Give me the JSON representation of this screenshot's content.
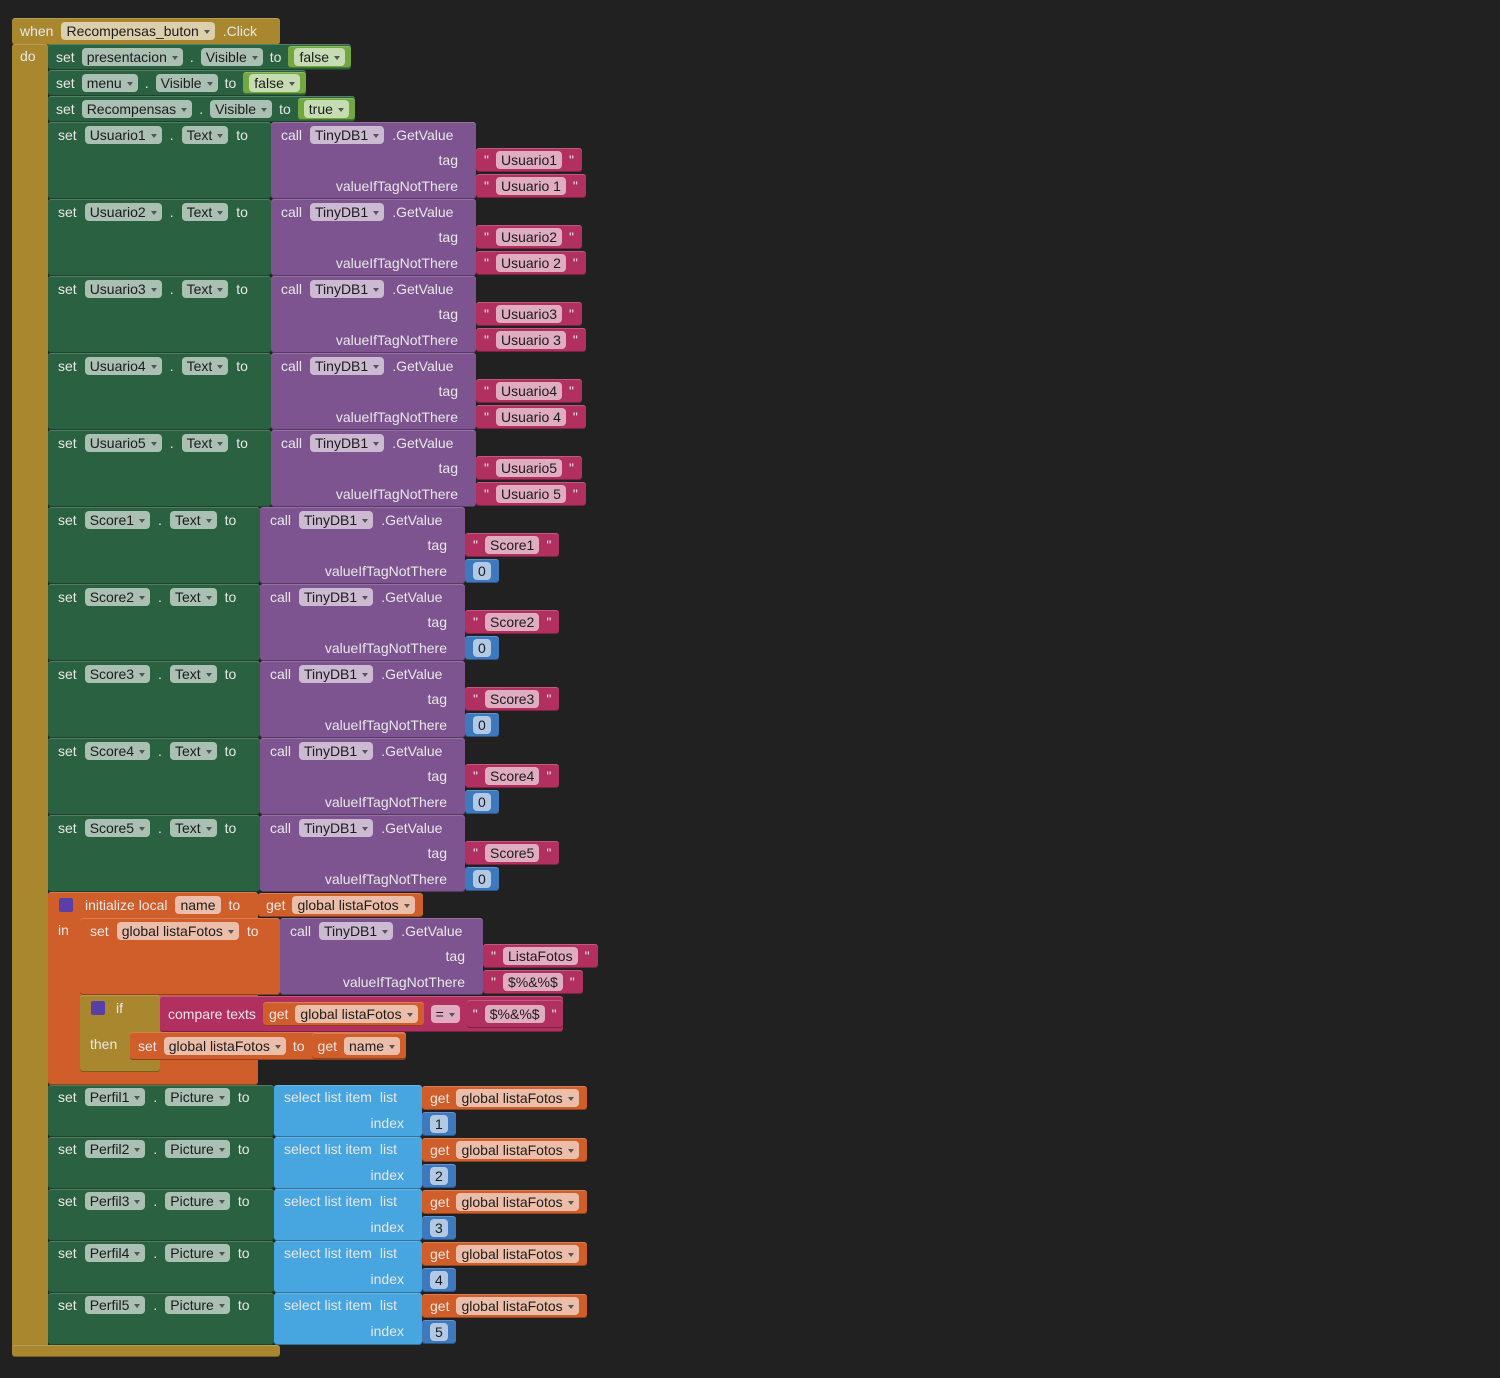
{
  "labels": {
    "when": "when",
    "do": "do",
    "set": "set",
    "dot": ".",
    "to": "to",
    "call": "call",
    "tag": "tag",
    "not_there": "valueIfTagNotThere",
    "quote": "\"",
    "initialize_local": "initialize local",
    "in": "in",
    "get": "get",
    "if": "if",
    "then": "then",
    "compare_texts": "compare texts",
    "select_list_item": "select list item",
    "list": "list",
    "index": "index"
  },
  "event": {
    "component": "Recompensas_buton",
    "event": ".Click"
  },
  "visibility": [
    {
      "component": "presentacion",
      "property": "Visible",
      "value": "false"
    },
    {
      "component": "menu",
      "property": "Visible",
      "value": "false"
    },
    {
      "component": "Recompensas",
      "property": "Visible",
      "value": "true"
    }
  ],
  "text_setters": [
    {
      "component": "Usuario1",
      "property": "Text",
      "db": "TinyDB1",
      "method": ".GetValue",
      "tag": "Usuario1",
      "default": "Usuario 1"
    },
    {
      "component": "Usuario2",
      "property": "Text",
      "db": "TinyDB1",
      "method": ".GetValue",
      "tag": "Usuario2",
      "default": "Usuario 2"
    },
    {
      "component": "Usuario3",
      "property": "Text",
      "db": "TinyDB1",
      "method": ".GetValue",
      "tag": "Usuario3",
      "default": "Usuario 3"
    },
    {
      "component": "Usuario4",
      "property": "Text",
      "db": "TinyDB1",
      "method": ".GetValue",
      "tag": "Usuario4",
      "default": "Usuario 4"
    },
    {
      "component": "Usuario5",
      "property": "Text",
      "db": "TinyDB1",
      "method": ".GetValue",
      "tag": "Usuario5",
      "default": "Usuario 5"
    },
    {
      "component": "Score1",
      "property": "Text",
      "db": "TinyDB1",
      "method": ".GetValue",
      "tag": "Score1",
      "default": 0
    },
    {
      "component": "Score2",
      "property": "Text",
      "db": "TinyDB1",
      "method": ".GetValue",
      "tag": "Score2",
      "default": 0
    },
    {
      "component": "Score3",
      "property": "Text",
      "db": "TinyDB1",
      "method": ".GetValue",
      "tag": "Score3",
      "default": 0
    },
    {
      "component": "Score4",
      "property": "Text",
      "db": "TinyDB1",
      "method": ".GetValue",
      "tag": "Score4",
      "default": 0
    },
    {
      "component": "Score5",
      "property": "Text",
      "db": "TinyDB1",
      "method": ".GetValue",
      "tag": "Score5",
      "default": 0
    }
  ],
  "local": {
    "name": "name",
    "init_var": "global listaFotos",
    "set_var": "global listaFotos",
    "db": "TinyDB1",
    "method": ".GetValue",
    "tag": "ListaFotos",
    "default": "$%&%$",
    "compare_var": "global listaFotos",
    "operator": "=",
    "compare_value": "$%&%$",
    "then_var": "global listaFotos",
    "then_value": "name"
  },
  "picture_setters": [
    {
      "component": "Perfil1",
      "property": "Picture",
      "list": "global listaFotos",
      "index": 1
    },
    {
      "component": "Perfil2",
      "property": "Picture",
      "list": "global listaFotos",
      "index": 2
    },
    {
      "component": "Perfil3",
      "property": "Picture",
      "list": "global listaFotos",
      "index": 3
    },
    {
      "component": "Perfil4",
      "property": "Picture",
      "list": "global listaFotos",
      "index": 4
    },
    {
      "component": "Perfil5",
      "property": "Picture",
      "list": "global listaFotos",
      "index": 5
    }
  ]
}
